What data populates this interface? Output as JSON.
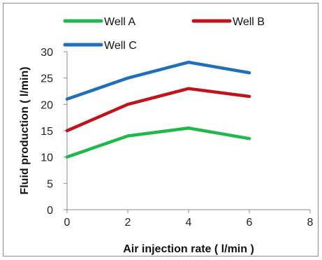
{
  "chart_data": {
    "type": "line",
    "xlabel": "Air injection rate ( l/min )",
    "ylabel": "Fluid production ( l/min)",
    "xlim": [
      0,
      8
    ],
    "ylim": [
      0,
      30
    ],
    "xticks": [
      "0",
      "2",
      "4",
      "6",
      "8"
    ],
    "yticks": [
      "0",
      "5",
      "10",
      "15",
      "20",
      "25",
      "30"
    ],
    "grid": false,
    "legend_position": "top",
    "series": [
      {
        "name": "Well A",
        "color": "#1fb84a",
        "x": [
          0,
          2,
          4,
          6
        ],
        "y": [
          10,
          14,
          15.5,
          13.5
        ]
      },
      {
        "name": "Well B",
        "color": "#c0131b",
        "x": [
          0,
          2,
          4,
          6
        ],
        "y": [
          15,
          20,
          23,
          21.5
        ]
      },
      {
        "name": "Well C",
        "color": "#1f6fb9",
        "x": [
          0,
          2,
          4,
          6
        ],
        "y": [
          21,
          25,
          28,
          26
        ]
      }
    ]
  }
}
